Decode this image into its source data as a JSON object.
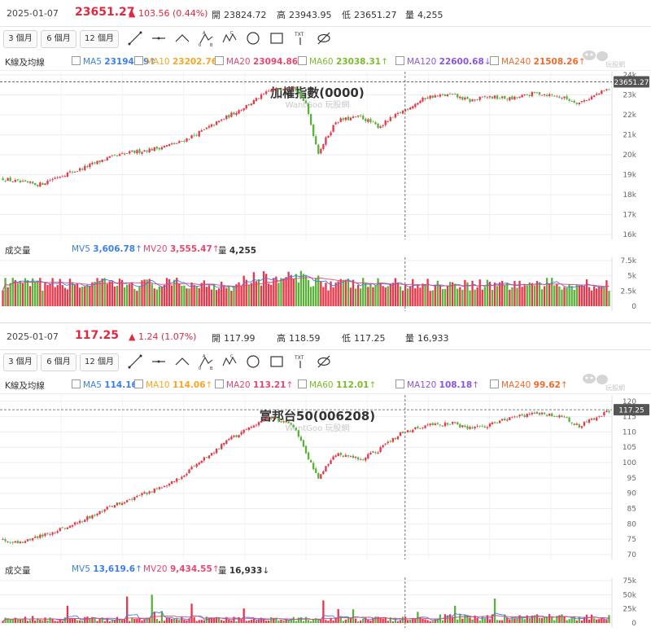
{
  "panels": [
    {
      "date": "2025-01-07",
      "price": "23651.27",
      "change": "▲ 103.56 (0.44%)",
      "open_label": "開",
      "open": "23824.72",
      "high_label": "高",
      "high": "23943.95",
      "low_label": "低",
      "low": "23651.27",
      "vol_label": "量",
      "volume": "4,255",
      "periods": [
        "3 個月",
        "6 個月",
        "12 個月"
      ],
      "ma_header": "K線及均線",
      "ma": [
        {
          "name": "MA5",
          "value": "23194.89",
          "arrow": "↑",
          "color": "#3a7ff0"
        },
        {
          "name": "MA10",
          "value": "23202.76",
          "arrow": "↑",
          "color": "#f5a623"
        },
        {
          "name": "MA20",
          "value": "23094.86",
          "arrow": "↑",
          "color": "#e8476f"
        },
        {
          "name": "MA60",
          "value": "23038.31",
          "arrow": "↑",
          "color": "#7cbd2a"
        },
        {
          "name": "MA120",
          "value": "22600.68",
          "arrow": "↓",
          "color": "#8a56e0"
        },
        {
          "name": "MA240",
          "value": "21508.26",
          "arrow": "↑",
          "color": "#f06a2c"
        }
      ],
      "chart_title": "加權指數(0000)",
      "watermark": "WantGoo 玩股網",
      "current_price_tag": "23651.27",
      "vol_header": "成交量",
      "vol_ma": [
        {
          "name": "MV5",
          "value": "3,606.78",
          "arrow": "↑",
          "color": "#3a7ff0"
        },
        {
          "name": "MV20",
          "value": "3,555.47",
          "arrow": "↑",
          "color": "#e8476f"
        }
      ],
      "vol_today_label": "量",
      "vol_today": "4,255",
      "vol_today_arrow": "",
      "logo_text": "玩股網"
    },
    {
      "date": "2025-01-07",
      "price": "117.25",
      "change": "▲ 1.24 (1.07%)",
      "open_label": "開",
      "open": "117.99",
      "high_label": "高",
      "high": "118.59",
      "low_label": "低",
      "low": "117.25",
      "vol_label": "量",
      "volume": "16,933",
      "periods": [
        "3 個月",
        "6 個月",
        "12 個月"
      ],
      "ma_header": "K線及均線",
      "ma": [
        {
          "name": "MA5",
          "value": "114.16",
          "arrow": "↑",
          "color": "#3a7ff0"
        },
        {
          "name": "MA10",
          "value": "114.06",
          "arrow": "↑",
          "color": "#f5a623"
        },
        {
          "name": "MA20",
          "value": "113.21",
          "arrow": "↑",
          "color": "#e8476f"
        },
        {
          "name": "MA60",
          "value": "112.01",
          "arrow": "↑",
          "color": "#7cbd2a"
        },
        {
          "name": "MA120",
          "value": "108.18",
          "arrow": "↑",
          "color": "#8a56e0"
        },
        {
          "name": "MA240",
          "value": "99.62",
          "arrow": "↑",
          "color": "#f06a2c"
        }
      ],
      "chart_title": "富邦台50(006208)",
      "watermark": "WantGoo 玩股網",
      "current_price_tag": "117.25",
      "vol_header": "成交量",
      "vol_ma": [
        {
          "name": "MV5",
          "value": "13,619.6",
          "arrow": "↑",
          "color": "#3a7ff0"
        },
        {
          "name": "MV20",
          "value": "9,434.55",
          "arrow": "↑",
          "color": "#e8476f"
        }
      ],
      "vol_today_label": "量",
      "vol_today": "16,933",
      "vol_today_arrow": "↓",
      "logo_text": "玩股網"
    }
  ],
  "chart_data": [
    {
      "type": "candlestick",
      "title": "加權指數(0000)",
      "y_ticks": [
        "16k",
        "17k",
        "18k",
        "19k",
        "20k",
        "21k",
        "22k",
        "23k",
        "24k"
      ],
      "ylim": [
        16000,
        24000
      ],
      "x_label": "",
      "y_label": "",
      "close_path": [
        [
          0,
          18800
        ],
        [
          0.03,
          18600
        ],
        [
          0.06,
          18500
        ],
        [
          0.09,
          18900
        ],
        [
          0.13,
          19300
        ],
        [
          0.17,
          19800
        ],
        [
          0.21,
          20100
        ],
        [
          0.25,
          20300
        ],
        [
          0.29,
          20600
        ],
        [
          0.33,
          21200
        ],
        [
          0.37,
          21900
        ],
        [
          0.41,
          22600
        ],
        [
          0.44,
          23200
        ],
        [
          0.48,
          23500
        ],
        [
          0.5,
          22500
        ],
        [
          0.52,
          20100
        ],
        [
          0.55,
          21700
        ],
        [
          0.59,
          21900
        ],
        [
          0.62,
          21400
        ],
        [
          0.66,
          22200
        ],
        [
          0.7,
          22900
        ],
        [
          0.74,
          23000
        ],
        [
          0.77,
          22700
        ],
        [
          0.8,
          22900
        ],
        [
          0.84,
          22800
        ],
        [
          0.88,
          23100
        ],
        [
          0.92,
          22900
        ],
        [
          0.95,
          22600
        ],
        [
          1.0,
          23300
        ]
      ],
      "volume_ticks": [
        "0",
        "2.5k",
        "5k",
        "7.5k"
      ],
      "volume_ylim": [
        0,
        7500
      ],
      "volume_level": 3600,
      "today_volume": 4255
    },
    {
      "type": "candlestick",
      "title": "富邦台50(006208)",
      "y_ticks": [
        "70",
        "75",
        "80",
        "85",
        "90",
        "95",
        "100",
        "105",
        "110",
        "115",
        "120"
      ],
      "ylim": [
        70,
        121
      ],
      "x_label": "",
      "y_label": "",
      "close_path": [
        [
          0,
          75
        ],
        [
          0.03,
          74
        ],
        [
          0.06,
          76
        ],
        [
          0.09,
          78
        ],
        [
          0.13,
          81
        ],
        [
          0.17,
          85
        ],
        [
          0.21,
          88
        ],
        [
          0.25,
          91
        ],
        [
          0.29,
          95
        ],
        [
          0.33,
          101
        ],
        [
          0.37,
          107
        ],
        [
          0.41,
          112
        ],
        [
          0.44,
          115
        ],
        [
          0.48,
          112
        ],
        [
          0.5,
          103
        ],
        [
          0.52,
          95
        ],
        [
          0.55,
          103
        ],
        [
          0.59,
          101
        ],
        [
          0.62,
          104
        ],
        [
          0.66,
          110
        ],
        [
          0.7,
          112
        ],
        [
          0.74,
          113
        ],
        [
          0.77,
          111
        ],
        [
          0.8,
          112
        ],
        [
          0.84,
          115
        ],
        [
          0.88,
          116
        ],
        [
          0.92,
          115
        ],
        [
          0.95,
          112
        ],
        [
          1.0,
          117
        ]
      ],
      "volume_ticks": [
        "0",
        "25k",
        "50k",
        "75k"
      ],
      "volume_ylim": [
        0,
        75000
      ],
      "volume_level": 9400,
      "today_volume": 16933
    }
  ]
}
